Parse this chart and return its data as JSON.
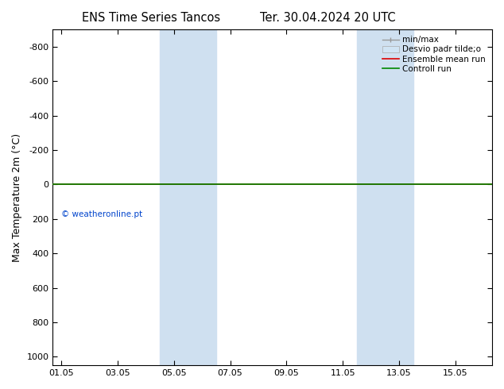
{
  "title_left": "ENS Time Series Tancos",
  "title_right": "Ter. 30.04.2024 20 UTC",
  "ylabel": "Max Temperature 2m (°C)",
  "ylim_top": -900,
  "ylim_bottom": 1050,
  "yticks": [
    -800,
    -600,
    -400,
    -200,
    0,
    200,
    400,
    600,
    800,
    1000
  ],
  "xtick_labels": [
    "01.05",
    "03.05",
    "05.05",
    "07.05",
    "09.05",
    "11.05",
    "13.05",
    "15.05"
  ],
  "xtick_positions": [
    0,
    2,
    4,
    6,
    8,
    10,
    12,
    14
  ],
  "xlim": [
    -0.3,
    15.3
  ],
  "shaded_bands": [
    {
      "x_start": 3.5,
      "x_end": 5.5
    },
    {
      "x_start": 10.5,
      "x_end": 12.5
    }
  ],
  "band_color": "#cfe0f0",
  "flat_line_y": 0,
  "green_line_color": "#008800",
  "red_line_color": "#dd0000",
  "copyright_text": "© weatheronline.pt",
  "copyright_color": "#0044cc",
  "legend_items": [
    "min/max",
    "Desvio padr tilde;o",
    "Ensemble mean run",
    "Controll run"
  ],
  "background_color": "#ffffff",
  "minmax_color": "#999999",
  "desvio_color": "#d0e4f4",
  "title_fontsize": 10.5,
  "ylabel_fontsize": 9,
  "tick_fontsize": 8,
  "legend_fontsize": 7.5
}
